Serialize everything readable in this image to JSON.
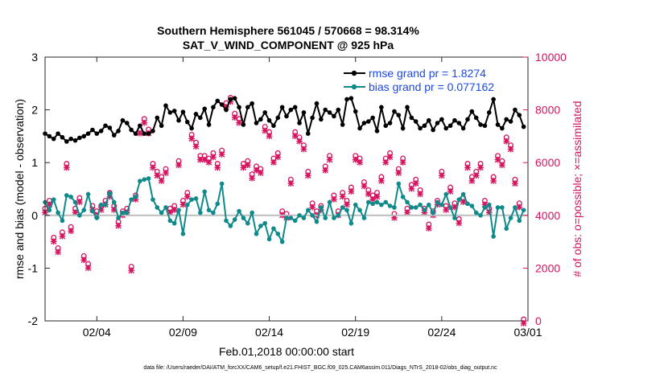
{
  "chart_data": {
    "type": "line",
    "title_line1": "Southern Hemisphere 561045 / 570668 = 98.314%",
    "title_line2": "SAT_V_WIND_COMPONENT @ 925 hPa",
    "xlabel": "Feb.01,2018 00:00:00 start",
    "ylabel": "rmse and bias (model - observation)",
    "ylabel_right": "# of obs: o=possible; ×=assimilated",
    "xlim": [
      1,
      29
    ],
    "ylim": [
      -2,
      3
    ],
    "ylim_right": [
      0,
      10000
    ],
    "x_ticks": [
      {
        "v": 4,
        "label": "02/04"
      },
      {
        "v": 9,
        "label": "02/09"
      },
      {
        "v": 14,
        "label": "02/14"
      },
      {
        "v": 19,
        "label": "02/19"
      },
      {
        "v": 24,
        "label": "02/24"
      },
      {
        "v": 29,
        "label": "03/01"
      }
    ],
    "y_ticks": [
      -2,
      -1,
      0,
      1,
      2,
      3
    ],
    "y_ticks_right": [
      0,
      2000,
      4000,
      6000,
      8000,
      10000
    ],
    "footer": "data file: /Users/raeder/DAI/ATM_forcXX/CAM6_setup/f.e21.FHIST_BGC.f09_025.CAM6assim.011/Diags_NTrS_2018-02/obs_diag_output.nc",
    "legend": [
      {
        "label": "rmse grand pr = 1.8274",
        "color": "#000000"
      },
      {
        "label": "bias grand pr = 0.077162",
        "color": "#0f8a8a"
      }
    ],
    "x": [
      1.0,
      1.25,
      1.5,
      1.75,
      2.0,
      2.25,
      2.5,
      2.75,
      3.0,
      3.25,
      3.5,
      3.75,
      4.0,
      4.25,
      4.5,
      4.75,
      5.0,
      5.25,
      5.5,
      5.75,
      6.0,
      6.25,
      6.5,
      6.75,
      7.0,
      7.25,
      7.5,
      7.75,
      8.0,
      8.25,
      8.5,
      8.75,
      9.0,
      9.25,
      9.5,
      9.75,
      10.0,
      10.25,
      10.5,
      10.75,
      11.0,
      11.25,
      11.5,
      11.75,
      12.0,
      12.25,
      12.5,
      12.75,
      13.0,
      13.25,
      13.5,
      13.75,
      14.0,
      14.25,
      14.5,
      14.75,
      15.0,
      15.25,
      15.5,
      15.75,
      16.0,
      16.25,
      16.5,
      16.75,
      17.0,
      17.25,
      17.5,
      17.75,
      18.0,
      18.25,
      18.5,
      18.75,
      19.0,
      19.25,
      19.5,
      19.75,
      20.0,
      20.25,
      20.5,
      20.75,
      21.0,
      21.25,
      21.5,
      21.75,
      22.0,
      22.25,
      22.5,
      22.75,
      23.0,
      23.25,
      23.5,
      23.75,
      24.0,
      24.25,
      24.5,
      24.75,
      25.0,
      25.25,
      25.5,
      25.75,
      26.0,
      26.25,
      26.5,
      26.75,
      27.0,
      27.25,
      27.5,
      27.75,
      28.0,
      28.25,
      28.5,
      28.75
    ],
    "series": [
      {
        "name": "rmse",
        "color": "#000000",
        "values": [
          1.55,
          1.5,
          1.45,
          1.55,
          1.48,
          1.4,
          1.45,
          1.42,
          1.47,
          1.5,
          1.55,
          1.62,
          1.55,
          1.6,
          1.7,
          1.66,
          1.52,
          1.6,
          1.8,
          1.75,
          1.62,
          1.55,
          1.7,
          1.55,
          1.55,
          1.6,
          1.85,
          1.7,
          2.08,
          1.95,
          1.98,
          1.8,
          1.96,
          1.77,
          1.65,
          1.92,
          1.85,
          2.02,
          1.72,
          2.05,
          2.17,
          2.1,
          2.0,
          2.2,
          2.22,
          2.05,
          1.72,
          2.05,
          2.12,
          1.75,
          1.82,
          1.95,
          1.8,
          1.7,
          1.85,
          2.05,
          1.88,
          2.0,
          2.05,
          1.75,
          1.95,
          1.55,
          1.85,
          2.12,
          1.82,
          2.0,
          1.95,
          1.88,
          2.0,
          1.72,
          2.2,
          2.22,
          1.97,
          1.65,
          1.75,
          1.78,
          1.85,
          1.6,
          2.05,
          1.7,
          1.75,
          1.97,
          1.9,
          1.65,
          2.05,
          1.85,
          1.78,
          1.65,
          1.7,
          1.8,
          1.62,
          1.75,
          1.82,
          1.65,
          1.7,
          1.8,
          1.75,
          1.65,
          1.82,
          1.97,
          1.85,
          1.72,
          1.7,
          1.95,
          2.2,
          1.72,
          1.65,
          1.82,
          1.78,
          2.0,
          1.9,
          1.68
        ]
      },
      {
        "name": "bias",
        "color": "#0f8a8a",
        "values": [
          0.25,
          0.1,
          0.3,
          0.05,
          -0.1,
          0.38,
          0.35,
          0.25,
          0.0,
          0.1,
          0.4,
          0.08,
          -0.05,
          0.2,
          0.2,
          0.42,
          0.25,
          -0.05,
          0.05,
          0.05,
          0.3,
          0.35,
          0.65,
          0.68,
          0.7,
          0.3,
          0.15,
          0.05,
          0.15,
          -0.1,
          -0.15,
          0.1,
          -0.35,
          0.2,
          0.3,
          0.32,
          0.05,
          0.45,
          0.1,
          0.05,
          0.22,
          0.6,
          -0.1,
          -0.2,
          -0.08,
          0.08,
          -0.05,
          -0.15,
          0.05,
          -0.35,
          -0.2,
          -0.15,
          -0.45,
          -0.25,
          -0.35,
          -0.5,
          -0.05,
          -0.05,
          -0.1,
          0.0,
          -0.05,
          0.1,
          0.0,
          -0.12,
          0.15,
          -0.05,
          0.25,
          -0.05,
          0.0,
          0.15,
          0.1,
          -0.15,
          0.2,
          0.1,
          -0.05,
          0.25,
          0.22,
          0.25,
          0.2,
          0.25,
          0.18,
          0.15,
          0.6,
          0.35,
          0.25,
          0.15,
          0.15,
          0.2,
          0.1,
          0.2,
          0.05,
          0.25,
          0.2,
          0.4,
          0.15,
          -0.05,
          0.3,
          0.4,
          0.22,
          0.18,
          0.05,
          0.0,
          0.15,
          0.2,
          -0.4,
          0.15,
          0.15,
          -0.25,
          -0.05,
          0.15,
          -0.1,
          0.1
        ]
      }
    ],
    "obs_possible": [
      4200,
      4500,
      3100,
      2700,
      3300,
      5900,
      3500,
      4200,
      4600,
      2400,
      2100,
      4300,
      4100,
      4300,
      4500,
      4800,
      4300,
      3700,
      4100,
      4200,
      2000,
      4700,
      7200,
      7600,
      7200,
      5900,
      5600,
      5400,
      5700,
      4200,
      4300,
      6000,
      4500,
      4800,
      7000,
      6700,
      6200,
      6200,
      6100,
      6300,
      5900,
      6400,
      8200,
      8400,
      7800,
      7600,
      5900,
      6000,
      5500,
      5800,
      5700,
      7300,
      7100,
      6100,
      6300,
      4100,
      4000,
      5300,
      7100,
      6900,
      6600,
      5600,
      4400,
      4100,
      4300,
      5800,
      6200,
      4700,
      4100,
      4800,
      4500,
      5000,
      6200,
      6100,
      5200,
      4900,
      4700,
      4800,
      5400,
      6100,
      6300,
      4000,
      5700,
      6100,
      4200,
      5100,
      5300,
      4900,
      4200,
      3600,
      4100,
      4500,
      5600,
      4300,
      5000,
      4400,
      3800,
      4600,
      5900,
      5400,
      5600,
      5900,
      4500,
      4200,
      5400,
      6200,
      6000,
      6900,
      6600,
      5300,
      4400,
      0
    ]
  }
}
